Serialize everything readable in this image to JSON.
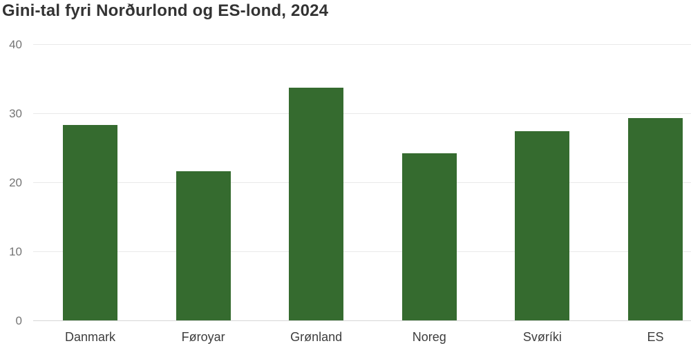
{
  "chart_data": {
    "type": "bar",
    "title": "Gini-tal fyri Norðurlond og ES-lond, 2024",
    "categories": [
      "Danmark",
      "Føroyar",
      "Grønland",
      "Noreg",
      "Svøríki",
      "ES"
    ],
    "values": [
      28.3,
      21.6,
      33.7,
      24.2,
      27.4,
      29.3
    ],
    "xlabel": "",
    "ylabel": "",
    "ylim": [
      0,
      40
    ],
    "yticks": [
      0,
      10,
      20,
      30,
      40
    ],
    "grid": true,
    "legend_position": "none",
    "colors": {
      "bar": "#356b2f",
      "gridline": "#e9e9e9",
      "axis_line": "#d6d6d6",
      "y_tick_label": "#757575",
      "x_tick_label": "#3d3d3d",
      "title": "#333333",
      "background": "#ffffff"
    }
  }
}
